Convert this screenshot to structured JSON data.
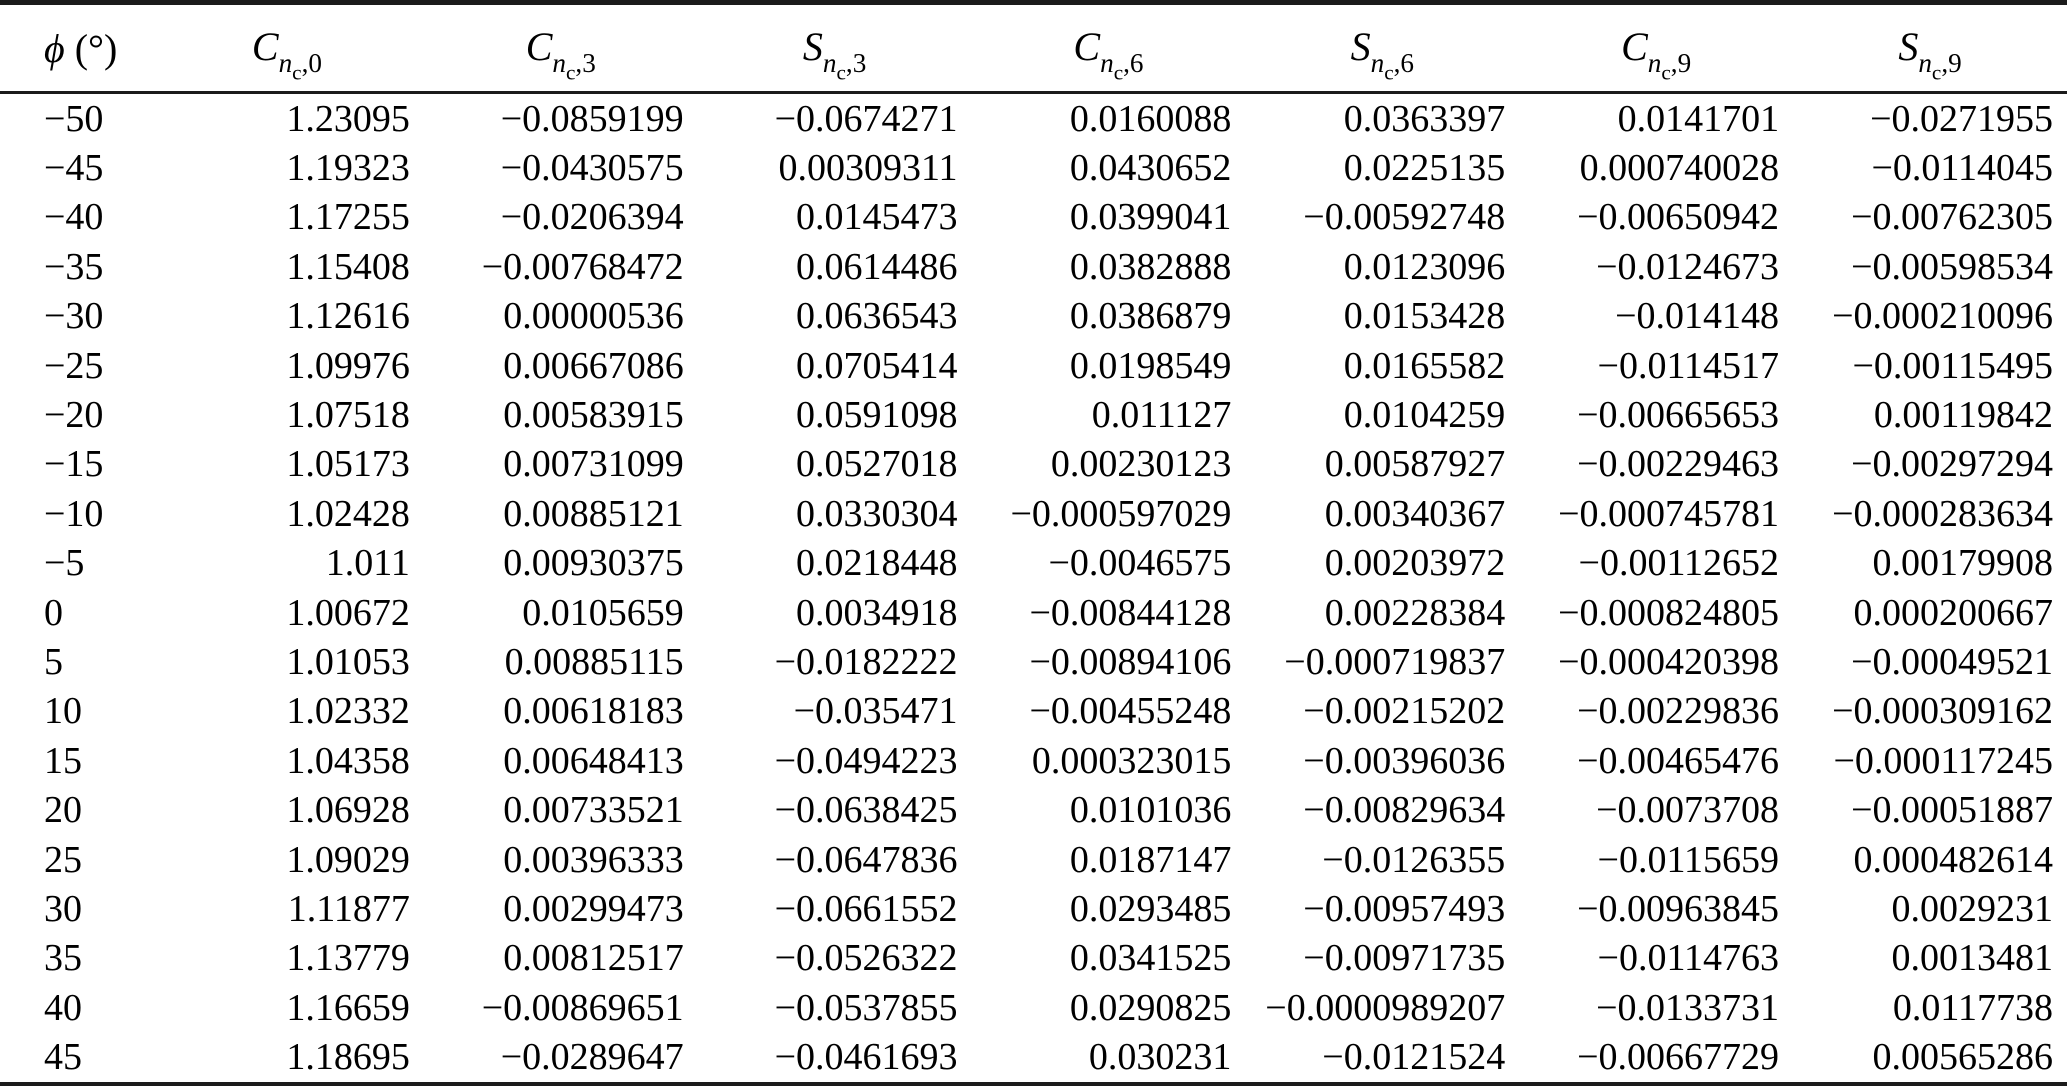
{
  "page": {
    "background": "#ffffff",
    "text_color": "#000000",
    "rule_color": "#1b1b1b"
  },
  "table": {
    "headers": [
      {
        "kind": "phi",
        "symbol": "ϕ",
        "unit": "(°)"
      },
      {
        "kind": "coef",
        "base": "C",
        "sub": "n",
        "subsub": "c",
        "index": "0"
      },
      {
        "kind": "coef",
        "base": "C",
        "sub": "n",
        "subsub": "c",
        "index": "3"
      },
      {
        "kind": "coef",
        "base": "S",
        "sub": "n",
        "subsub": "c",
        "index": "3"
      },
      {
        "kind": "coef",
        "base": "C",
        "sub": "n",
        "subsub": "c",
        "index": "6"
      },
      {
        "kind": "coef",
        "base": "S",
        "sub": "n",
        "subsub": "c",
        "index": "6"
      },
      {
        "kind": "coef",
        "base": "C",
        "sub": "n",
        "subsub": "c",
        "index": "9"
      },
      {
        "kind": "coef",
        "base": "S",
        "sub": "n",
        "subsub": "c",
        "index": "9"
      }
    ],
    "rows": [
      [
        "−50",
        "1.23095",
        "−0.0859199",
        "−0.0674271",
        "0.0160088",
        "0.0363397",
        "0.0141701",
        "−0.0271955"
      ],
      [
        "−45",
        "1.19323",
        "−0.0430575",
        "0.00309311",
        "0.0430652",
        "0.0225135",
        "0.000740028",
        "−0.0114045"
      ],
      [
        "−40",
        "1.17255",
        "−0.0206394",
        "0.0145473",
        "0.0399041",
        "−0.00592748",
        "−0.00650942",
        "−0.00762305"
      ],
      [
        "−35",
        "1.15408",
        "−0.00768472",
        "0.0614486",
        "0.0382888",
        "0.0123096",
        "−0.0124673",
        "−0.00598534"
      ],
      [
        "−30",
        "1.12616",
        "0.00000536",
        "0.0636543",
        "0.0386879",
        "0.0153428",
        "−0.014148",
        "−0.000210096"
      ],
      [
        "−25",
        "1.09976",
        "0.00667086",
        "0.0705414",
        "0.0198549",
        "0.0165582",
        "−0.0114517",
        "−0.00115495"
      ],
      [
        "−20",
        "1.07518",
        "0.00583915",
        "0.0591098",
        "0.011127",
        "0.0104259",
        "−0.00665653",
        "0.00119842"
      ],
      [
        "−15",
        "1.05173",
        "0.00731099",
        "0.0527018",
        "0.00230123",
        "0.00587927",
        "−0.00229463",
        "−0.00297294"
      ],
      [
        "−10",
        "1.02428",
        "0.00885121",
        "0.0330304",
        "−0.000597029",
        "0.00340367",
        "−0.000745781",
        "−0.000283634"
      ],
      [
        "−5",
        "1.011",
        "0.00930375",
        "0.0218448",
        "−0.0046575",
        "0.00203972",
        "−0.00112652",
        "0.00179908"
      ],
      [
        "0",
        "1.00672",
        "0.0105659",
        "0.0034918",
        "−0.00844128",
        "0.00228384",
        "−0.000824805",
        "0.000200667"
      ],
      [
        "5",
        "1.01053",
        "0.00885115",
        "−0.0182222",
        "−0.00894106",
        "−0.000719837",
        "−0.000420398",
        "−0.00049521"
      ],
      [
        "10",
        "1.02332",
        "0.00618183",
        "−0.035471",
        "−0.00455248",
        "−0.00215202",
        "−0.00229836",
        "−0.000309162"
      ],
      [
        "15",
        "1.04358",
        "0.00648413",
        "−0.0494223",
        "0.000323015",
        "−0.00396036",
        "−0.00465476",
        "−0.000117245"
      ],
      [
        "20",
        "1.06928",
        "0.00733521",
        "−0.0638425",
        "0.0101036",
        "−0.00829634",
        "−0.0073708",
        "−0.00051887"
      ],
      [
        "25",
        "1.09029",
        "0.00396333",
        "−0.0647836",
        "0.0187147",
        "−0.0126355",
        "−0.0115659",
        "0.000482614"
      ],
      [
        "30",
        "1.11877",
        "0.00299473",
        "−0.0661552",
        "0.0293485",
        "−0.00957493",
        "−0.00963845",
        "0.0029231"
      ],
      [
        "35",
        "1.13779",
        "0.00812517",
        "−0.0526322",
        "0.0341525",
        "−0.00971735",
        "−0.0114763",
        "0.0013481"
      ],
      [
        "40",
        "1.16659",
        "−0.00869651",
        "−0.0537855",
        "0.0290825",
        "−0.0000989207",
        "−0.0133731",
        "0.0117738"
      ],
      [
        "45",
        "1.18695",
        "−0.0289647",
        "−0.0461693",
        "0.030231",
        "−0.0121524",
        "−0.00667729",
        "0.00565286"
      ]
    ]
  }
}
